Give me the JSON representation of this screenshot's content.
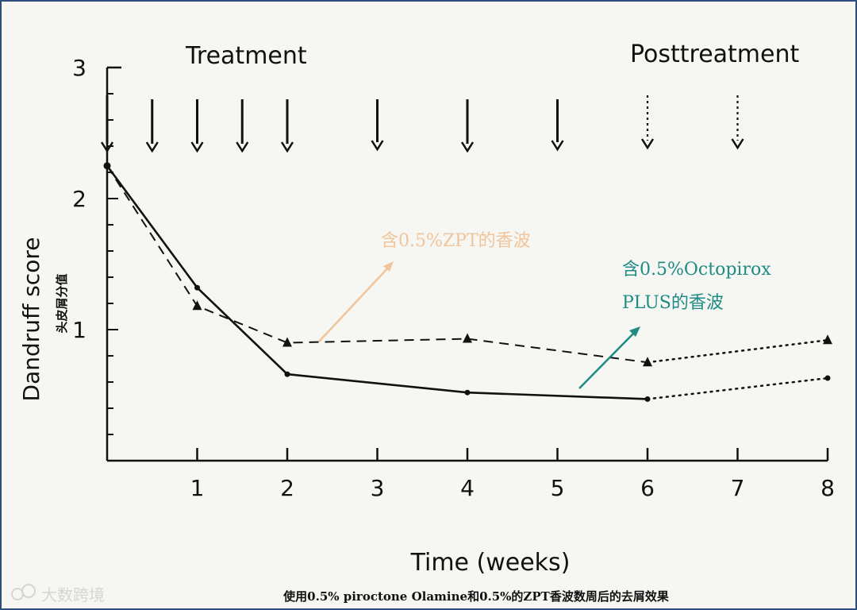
{
  "chart_data": {
    "type": "line",
    "ylabel": "Dandruff score",
    "ylabel_cn": "头皮屑分值",
    "xlabel": "Time (weeks)",
    "xlim": [
      0,
      8
    ],
    "ylim": [
      0,
      3
    ],
    "x_ticks": [
      1,
      2,
      3,
      4,
      5,
      6,
      7,
      8
    ],
    "y_ticks": [
      1,
      2,
      3
    ],
    "x_tick_labels": [
      "1",
      "2",
      "3",
      "4",
      "5",
      "6",
      "7",
      "8"
    ],
    "y_tick_labels": [
      "1",
      "2",
      "3"
    ],
    "phase_labels": {
      "treatment": "Treatment",
      "posttreatment": "Posttreatment"
    },
    "treatment_arrows_x": [
      0,
      0.5,
      1,
      1.5,
      2,
      3,
      4,
      5
    ],
    "posttreatment_arrows_x": [
      6,
      7
    ],
    "series": [
      {
        "name": "含0.5%ZPT的香波",
        "marker": "triangle",
        "line_style": "dashed",
        "points": [
          [
            0,
            2.25
          ],
          [
            1,
            1.18
          ],
          [
            2,
            0.9
          ],
          [
            4,
            0.93
          ],
          [
            6,
            0.75
          ]
        ],
        "post_points": [
          [
            6,
            0.75
          ],
          [
            8,
            0.92
          ]
        ]
      },
      {
        "name": "含0.5%Octopirox PLUS的香波",
        "marker": "circle",
        "line_style": "solid",
        "points": [
          [
            0,
            2.25
          ],
          [
            1,
            1.32
          ],
          [
            2,
            0.66
          ],
          [
            4,
            0.52
          ],
          [
            6,
            0.47
          ]
        ],
        "post_points": [
          [
            6,
            0.47
          ],
          [
            8,
            0.63
          ]
        ]
      }
    ],
    "annotations": [
      {
        "text": "含0.5%ZPT的香波",
        "color": "#f2c49a"
      },
      {
        "text_line1": "含0.5%Octopirox",
        "text_line2": "PLUS的香波",
        "color": "#1e8c84"
      }
    ]
  },
  "caption": "使用0.5% piroctone Olamine和0.5%的ZPT香波数周后的去屑效果",
  "watermark": "大数跨境"
}
